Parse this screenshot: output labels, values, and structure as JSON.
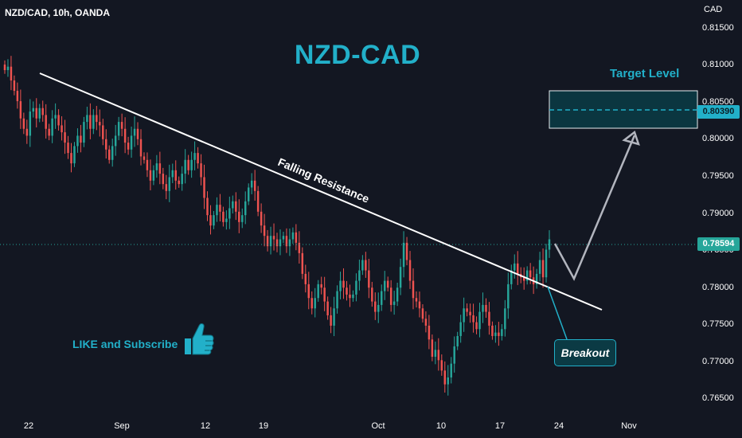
{
  "header": {
    "symbol_line": "NZD/CAD, 10h, OANDA"
  },
  "title": "NZD-CAD",
  "axis": {
    "currency": "CAD",
    "y_ticks": [
      "0.81500",
      "0.81000",
      "0.80500",
      "0.80000",
      "0.79500",
      "0.79000",
      "0.78500",
      "0.78000",
      "0.77500",
      "0.77000",
      "0.76500"
    ],
    "x_ticks": [
      "22",
      "Sep",
      "12",
      "19",
      "Oct",
      "10",
      "17",
      "24",
      "Nov"
    ]
  },
  "price_labels": {
    "current": "0.78594",
    "target": "0.80390"
  },
  "annotations": {
    "target_level": "Target Level",
    "falling_resistance": "Falling Resistance",
    "breakout": "Breakout",
    "like_subscribe": "LIKE and Subscribe"
  },
  "colors": {
    "bull": "#26a69a",
    "bear": "#ef5350",
    "accent": "#22b0c9",
    "background": "#131722",
    "trendline": "#ffffff"
  },
  "chart_data": {
    "type": "candlestick",
    "ylim": [
      0.763,
      0.8165
    ],
    "x_ticks": [
      "22",
      "Sep",
      "12",
      "19",
      "Oct",
      "10",
      "17",
      "24",
      "Nov"
    ],
    "y_ticks": [
      0.815,
      0.81,
      0.805,
      0.8,
      0.795,
      0.79,
      0.785,
      0.78,
      0.775,
      0.77,
      0.765
    ],
    "closes": [
      0.8105,
      0.811,
      0.809,
      0.8075,
      0.806,
      0.8035,
      0.802,
      0.801,
      0.8045,
      0.805,
      0.8035,
      0.805,
      0.804,
      0.802,
      0.801,
      0.8035,
      0.804,
      0.8025,
      0.8015,
      0.8,
      0.7985,
      0.797,
      0.7995,
      0.801,
      0.8,
      0.803,
      0.804,
      0.802,
      0.804,
      0.803,
      0.8025,
      0.8005,
      0.799,
      0.7975,
      0.7995,
      0.801,
      0.803,
      0.802,
      0.8,
      0.799,
      0.801,
      0.802,
      0.8005,
      0.798,
      0.7975,
      0.796,
      0.7945,
      0.796,
      0.797,
      0.7955,
      0.794,
      0.793,
      0.795,
      0.796,
      0.7945,
      0.794,
      0.7955,
      0.7975,
      0.796,
      0.7975,
      0.7985,
      0.797,
      0.795,
      0.792,
      0.7895,
      0.788,
      0.7895,
      0.791,
      0.79,
      0.7885,
      0.789,
      0.7905,
      0.7915,
      0.79,
      0.7885,
      0.7895,
      0.7915,
      0.7935,
      0.7945,
      0.793,
      0.79,
      0.788,
      0.7865,
      0.785,
      0.7865,
      0.786,
      0.785,
      0.786,
      0.7865,
      0.785,
      0.786,
      0.787,
      0.7855,
      0.784,
      0.781,
      0.7795,
      0.7775,
      0.776,
      0.7775,
      0.7795,
      0.779,
      0.777,
      0.775,
      0.7735,
      0.776,
      0.7785,
      0.78,
      0.779,
      0.778,
      0.7775,
      0.778,
      0.78,
      0.7815,
      0.783,
      0.7815,
      0.779,
      0.777,
      0.7755,
      0.7765,
      0.7785,
      0.78,
      0.779,
      0.7765,
      0.777,
      0.779,
      0.782,
      0.7855,
      0.783,
      0.78,
      0.7775,
      0.777,
      0.776,
      0.7745,
      0.7735,
      0.7715,
      0.769,
      0.77,
      0.7685,
      0.767,
      0.765,
      0.766,
      0.768,
      0.7705,
      0.772,
      0.774,
      0.776,
      0.7755,
      0.775,
      0.774,
      0.773,
      0.7755,
      0.7765,
      0.7755,
      0.7735,
      0.772,
      0.7725,
      0.772,
      0.773,
      0.776,
      0.7795,
      0.7815,
      0.7825,
      0.781,
      0.7805,
      0.78,
      0.7815,
      0.7805,
      0.7795,
      0.781,
      0.783,
      0.7805,
      0.7845,
      0.786
    ],
    "last_price": 0.78594,
    "target_price": 0.8039
  }
}
